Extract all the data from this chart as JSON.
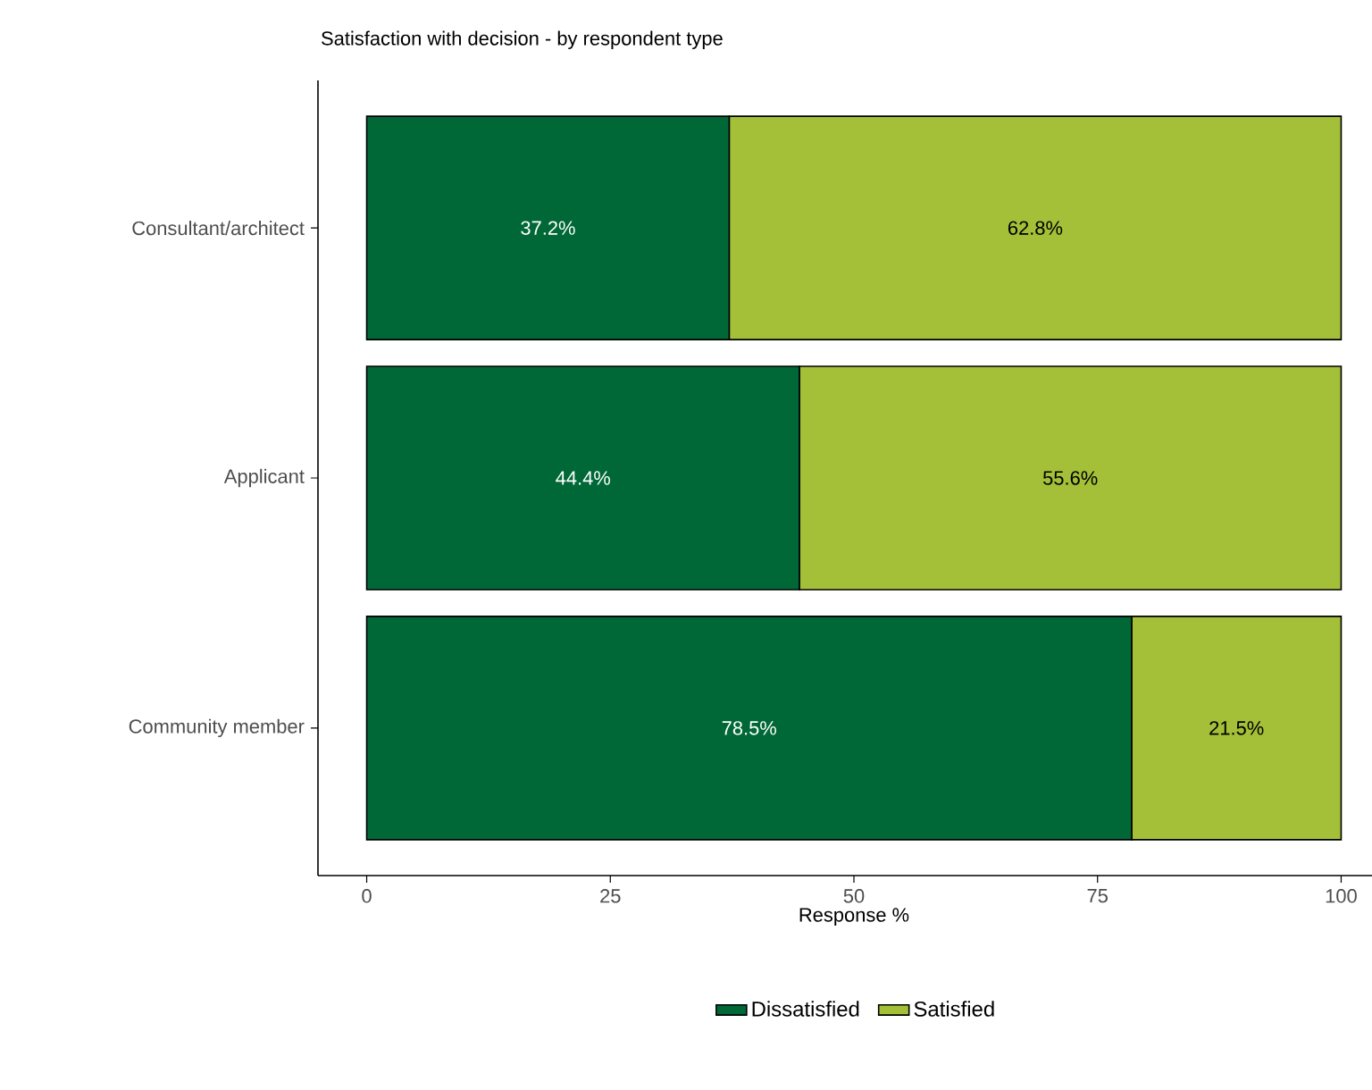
{
  "chart_data": {
    "type": "bar",
    "orientation": "horizontal",
    "stacked": true,
    "title": "Satisfaction with decision - by respondent type",
    "xlabel": "Response %",
    "categories": [
      "Consultant/architect",
      "Applicant",
      "Community member"
    ],
    "series": [
      {
        "name": "Dissatisfied",
        "color": "#006837",
        "values": [
          37.2,
          44.4,
          78.5
        ],
        "value_labels": [
          "37.2%",
          "44.4%",
          "78.5%"
        ]
      },
      {
        "name": "Satisfied",
        "color": "#a3c038",
        "values": [
          62.8,
          55.6,
          21.5
        ],
        "value_labels": [
          "62.8%",
          "55.6%",
          "21.5%"
        ]
      }
    ],
    "xlim": [
      -5,
      105
    ],
    "xticks": [
      0,
      25,
      50,
      75,
      100
    ],
    "legend": "bottom",
    "grid": false
  }
}
